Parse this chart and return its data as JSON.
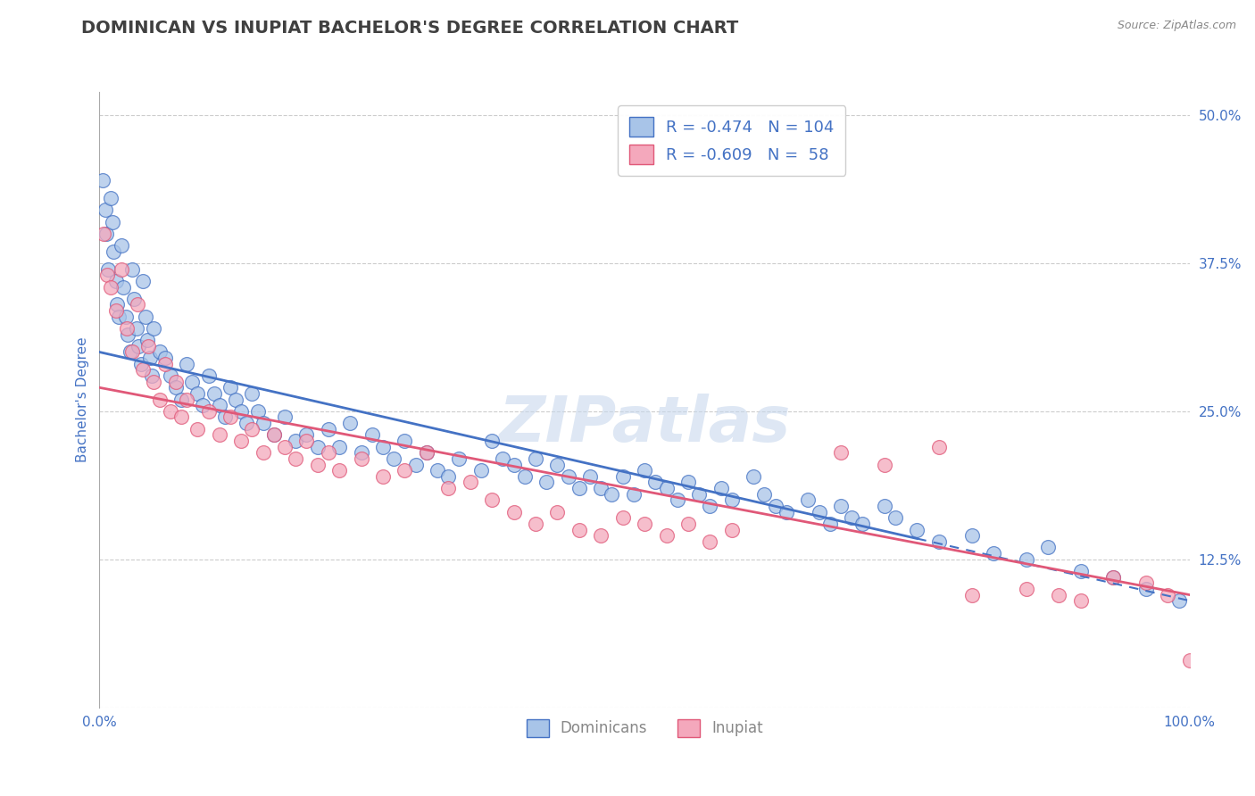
{
  "title": "DOMINICAN VS INUPIAT BACHELOR'S DEGREE CORRELATION CHART",
  "source_text": "Source: ZipAtlas.com",
  "ylabel": "Bachelor's Degree",
  "watermark": "ZIPatlas",
  "legend_blue_r": "-0.474",
  "legend_blue_n": "104",
  "legend_pink_r": "-0.609",
  "legend_pink_n": "58",
  "legend_blue_label": "Dominicans",
  "legend_pink_label": "Inupiat",
  "xmin": 0.0,
  "xmax": 100.0,
  "ymin": 0.0,
  "ymax": 52.0,
  "yticks": [
    0.0,
    12.5,
    25.0,
    37.5,
    50.0
  ],
  "ytick_labels": [
    "",
    "12.5%",
    "25.0%",
    "37.5%",
    "50.0%"
  ],
  "xticks": [
    0.0,
    25.0,
    50.0,
    75.0,
    100.0
  ],
  "xtick_labels": [
    "0.0%",
    "",
    "",
    "",
    "100.0%"
  ],
  "blue_color": "#a8c4e8",
  "pink_color": "#f4a8bc",
  "blue_line_color": "#4472C4",
  "pink_line_color": "#e05878",
  "title_color": "#404040",
  "axis_label_color": "#4472C4",
  "blue_scatter": [
    [
      0.3,
      44.5
    ],
    [
      0.5,
      42.0
    ],
    [
      0.6,
      40.0
    ],
    [
      0.8,
      37.0
    ],
    [
      1.0,
      43.0
    ],
    [
      1.2,
      41.0
    ],
    [
      1.3,
      38.5
    ],
    [
      1.5,
      36.0
    ],
    [
      1.6,
      34.0
    ],
    [
      1.8,
      33.0
    ],
    [
      2.0,
      39.0
    ],
    [
      2.2,
      35.5
    ],
    [
      2.4,
      33.0
    ],
    [
      2.6,
      31.5
    ],
    [
      2.8,
      30.0
    ],
    [
      3.0,
      37.0
    ],
    [
      3.2,
      34.5
    ],
    [
      3.4,
      32.0
    ],
    [
      3.6,
      30.5
    ],
    [
      3.8,
      29.0
    ],
    [
      4.0,
      36.0
    ],
    [
      4.2,
      33.0
    ],
    [
      4.4,
      31.0
    ],
    [
      4.6,
      29.5
    ],
    [
      4.8,
      28.0
    ],
    [
      5.0,
      32.0
    ],
    [
      5.5,
      30.0
    ],
    [
      6.0,
      29.5
    ],
    [
      6.5,
      28.0
    ],
    [
      7.0,
      27.0
    ],
    [
      7.5,
      26.0
    ],
    [
      8.0,
      29.0
    ],
    [
      8.5,
      27.5
    ],
    [
      9.0,
      26.5
    ],
    [
      9.5,
      25.5
    ],
    [
      10.0,
      28.0
    ],
    [
      10.5,
      26.5
    ],
    [
      11.0,
      25.5
    ],
    [
      11.5,
      24.5
    ],
    [
      12.0,
      27.0
    ],
    [
      12.5,
      26.0
    ],
    [
      13.0,
      25.0
    ],
    [
      13.5,
      24.0
    ],
    [
      14.0,
      26.5
    ],
    [
      14.5,
      25.0
    ],
    [
      15.0,
      24.0
    ],
    [
      16.0,
      23.0
    ],
    [
      17.0,
      24.5
    ],
    [
      18.0,
      22.5
    ],
    [
      19.0,
      23.0
    ],
    [
      20.0,
      22.0
    ],
    [
      21.0,
      23.5
    ],
    [
      22.0,
      22.0
    ],
    [
      23.0,
      24.0
    ],
    [
      24.0,
      21.5
    ],
    [
      25.0,
      23.0
    ],
    [
      26.0,
      22.0
    ],
    [
      27.0,
      21.0
    ],
    [
      28.0,
      22.5
    ],
    [
      29.0,
      20.5
    ],
    [
      30.0,
      21.5
    ],
    [
      31.0,
      20.0
    ],
    [
      32.0,
      19.5
    ],
    [
      33.0,
      21.0
    ],
    [
      35.0,
      20.0
    ],
    [
      36.0,
      22.5
    ],
    [
      37.0,
      21.0
    ],
    [
      38.0,
      20.5
    ],
    [
      39.0,
      19.5
    ],
    [
      40.0,
      21.0
    ],
    [
      41.0,
      19.0
    ],
    [
      42.0,
      20.5
    ],
    [
      43.0,
      19.5
    ],
    [
      44.0,
      18.5
    ],
    [
      45.0,
      19.5
    ],
    [
      46.0,
      18.5
    ],
    [
      47.0,
      18.0
    ],
    [
      48.0,
      19.5
    ],
    [
      49.0,
      18.0
    ],
    [
      50.0,
      20.0
    ],
    [
      51.0,
      19.0
    ],
    [
      52.0,
      18.5
    ],
    [
      53.0,
      17.5
    ],
    [
      54.0,
      19.0
    ],
    [
      55.0,
      18.0
    ],
    [
      56.0,
      17.0
    ],
    [
      57.0,
      18.5
    ],
    [
      58.0,
      17.5
    ],
    [
      60.0,
      19.5
    ],
    [
      61.0,
      18.0
    ],
    [
      62.0,
      17.0
    ],
    [
      63.0,
      16.5
    ],
    [
      65.0,
      17.5
    ],
    [
      66.0,
      16.5
    ],
    [
      67.0,
      15.5
    ],
    [
      68.0,
      17.0
    ],
    [
      69.0,
      16.0
    ],
    [
      70.0,
      15.5
    ],
    [
      72.0,
      17.0
    ],
    [
      73.0,
      16.0
    ],
    [
      75.0,
      15.0
    ],
    [
      77.0,
      14.0
    ],
    [
      80.0,
      14.5
    ],
    [
      82.0,
      13.0
    ],
    [
      85.0,
      12.5
    ],
    [
      87.0,
      13.5
    ],
    [
      90.0,
      11.5
    ],
    [
      93.0,
      11.0
    ],
    [
      96.0,
      10.0
    ],
    [
      99.0,
      9.0
    ]
  ],
  "pink_scatter": [
    [
      0.4,
      40.0
    ],
    [
      0.7,
      36.5
    ],
    [
      1.0,
      35.5
    ],
    [
      1.5,
      33.5
    ],
    [
      2.0,
      37.0
    ],
    [
      2.5,
      32.0
    ],
    [
      3.0,
      30.0
    ],
    [
      3.5,
      34.0
    ],
    [
      4.0,
      28.5
    ],
    [
      4.5,
      30.5
    ],
    [
      5.0,
      27.5
    ],
    [
      5.5,
      26.0
    ],
    [
      6.0,
      29.0
    ],
    [
      6.5,
      25.0
    ],
    [
      7.0,
      27.5
    ],
    [
      7.5,
      24.5
    ],
    [
      8.0,
      26.0
    ],
    [
      9.0,
      23.5
    ],
    [
      10.0,
      25.0
    ],
    [
      11.0,
      23.0
    ],
    [
      12.0,
      24.5
    ],
    [
      13.0,
      22.5
    ],
    [
      14.0,
      23.5
    ],
    [
      15.0,
      21.5
    ],
    [
      16.0,
      23.0
    ],
    [
      17.0,
      22.0
    ],
    [
      18.0,
      21.0
    ],
    [
      19.0,
      22.5
    ],
    [
      20.0,
      20.5
    ],
    [
      21.0,
      21.5
    ],
    [
      22.0,
      20.0
    ],
    [
      24.0,
      21.0
    ],
    [
      26.0,
      19.5
    ],
    [
      28.0,
      20.0
    ],
    [
      30.0,
      21.5
    ],
    [
      32.0,
      18.5
    ],
    [
      34.0,
      19.0
    ],
    [
      36.0,
      17.5
    ],
    [
      38.0,
      16.5
    ],
    [
      40.0,
      15.5
    ],
    [
      42.0,
      16.5
    ],
    [
      44.0,
      15.0
    ],
    [
      46.0,
      14.5
    ],
    [
      48.0,
      16.0
    ],
    [
      50.0,
      15.5
    ],
    [
      52.0,
      14.5
    ],
    [
      54.0,
      15.5
    ],
    [
      56.0,
      14.0
    ],
    [
      58.0,
      15.0
    ],
    [
      68.0,
      21.5
    ],
    [
      72.0,
      20.5
    ],
    [
      77.0,
      22.0
    ],
    [
      80.0,
      9.5
    ],
    [
      85.0,
      10.0
    ],
    [
      88.0,
      9.5
    ],
    [
      90.0,
      9.0
    ],
    [
      93.0,
      11.0
    ],
    [
      96.0,
      10.5
    ],
    [
      98.0,
      9.5
    ],
    [
      100.0,
      4.0
    ]
  ],
  "blue_line_y_start": 30.0,
  "blue_line_y_end": 9.0,
  "blue_solid_end_x": 75.0,
  "pink_line_y_start": 27.0,
  "pink_line_y_end": 9.5,
  "background_color": "#ffffff",
  "grid_color": "#cccccc",
  "title_fontsize": 14,
  "axis_fontsize": 11,
  "tick_fontsize": 11,
  "watermark_fontsize": 52,
  "watermark_color": "#c8d8ed",
  "watermark_alpha": 0.6
}
